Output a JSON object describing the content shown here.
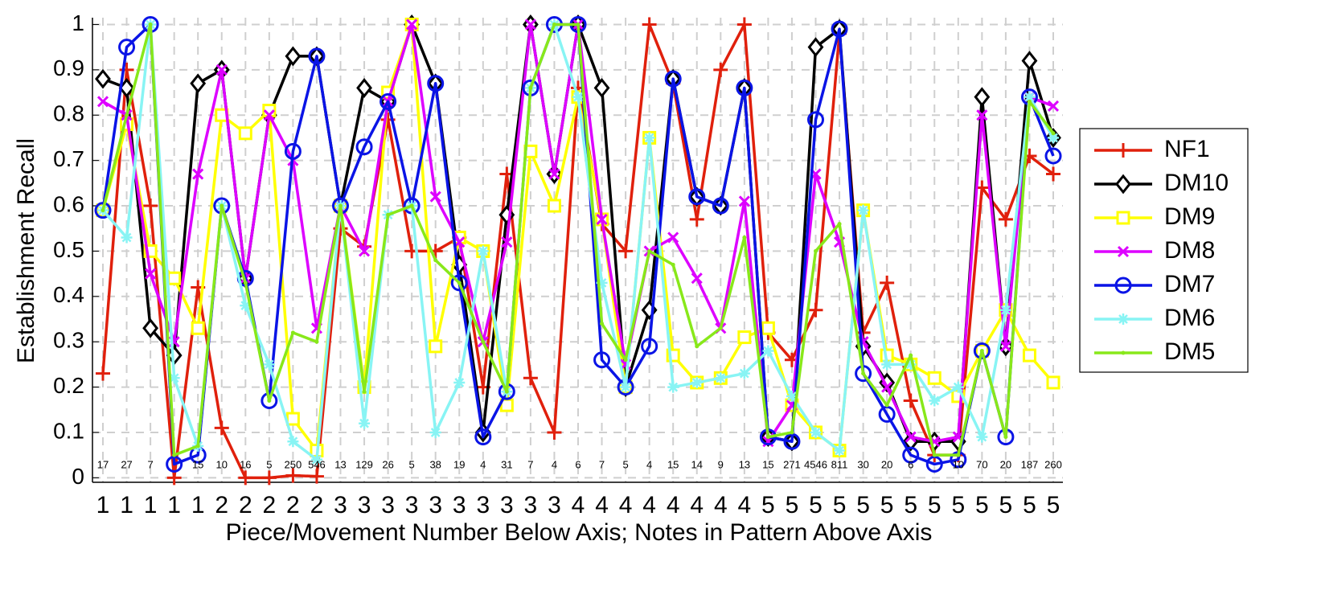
{
  "chart_data": {
    "type": "line",
    "ylabel": "Establishment Recall",
    "xlabel": "Piece/Movement Number Below Axis; Notes in Pattern Above Axis",
    "categories": [
      "1",
      "1",
      "1",
      "1",
      "1",
      "2",
      "2",
      "2",
      "2",
      "2",
      "3",
      "3",
      "3",
      "3",
      "3",
      "3",
      "3",
      "3",
      "3",
      "3",
      "4",
      "4",
      "4",
      "4",
      "4",
      "4",
      "4",
      "4",
      "5",
      "5",
      "5",
      "5",
      "5",
      "5",
      "5",
      "5",
      "5",
      "5",
      "5",
      "5",
      "5"
    ],
    "annotations": [
      17,
      27,
      7,
      null,
      15,
      10,
      16,
      5,
      250,
      546,
      13,
      129,
      26,
      5,
      38,
      19,
      4,
      31,
      7,
      4,
      6,
      7,
      5,
      4,
      15,
      14,
      9,
      13,
      15,
      271,
      4546,
      811,
      30,
      20,
      6,
      null,
      10,
      70,
      20,
      187,
      260
    ],
    "ylim": [
      -0.01,
      1.015
    ],
    "yticks": [
      0,
      0.1,
      0.2,
      0.3,
      0.4,
      0.5,
      0.6,
      0.7,
      0.8,
      0.9,
      1
    ],
    "grid": true,
    "legend": "right",
    "series": [
      {
        "name": "NF1",
        "color": "#e0200c",
        "marker": "plus",
        "values": [
          0.23,
          0.9,
          0.6,
          0.0,
          0.42,
          0.11,
          0.0,
          0.0,
          0.005,
          0.003,
          0.55,
          0.51,
          0.79,
          0.5,
          0.5,
          0.53,
          0.2,
          0.67,
          0.22,
          0.1,
          0.86,
          0.56,
          0.5,
          1.0,
          0.87,
          0.57,
          0.9,
          1.0,
          0.32,
          0.26,
          0.37,
          0.98,
          0.32,
          0.43,
          0.17,
          0.05,
          0.05,
          0.64,
          0.57,
          0.71,
          0.67
        ]
      },
      {
        "name": "DM10",
        "color": "#000000",
        "marker": "diamond",
        "values": [
          0.88,
          0.86,
          0.33,
          0.27,
          0.87,
          0.9,
          0.44,
          0.8,
          0.93,
          0.93,
          0.6,
          0.86,
          0.83,
          1.0,
          0.87,
          0.47,
          0.1,
          0.58,
          1.0,
          0.67,
          1.0,
          0.86,
          0.2,
          0.37,
          0.88,
          0.62,
          0.6,
          0.86,
          0.09,
          0.08,
          0.95,
          0.99,
          0.29,
          0.21,
          0.08,
          0.08,
          0.08,
          0.84,
          0.29,
          0.92,
          0.75
        ]
      },
      {
        "name": "DM9",
        "color": "#ffff00",
        "marker": "square",
        "values": [
          0.59,
          0.78,
          0.5,
          0.44,
          0.33,
          0.8,
          0.76,
          0.81,
          0.13,
          0.06,
          0.6,
          0.2,
          0.85,
          1.0,
          0.29,
          0.53,
          0.5,
          0.16,
          0.72,
          0.6,
          0.84,
          0.57,
          0.2,
          0.75,
          0.27,
          0.21,
          0.22,
          0.31,
          0.33,
          0.16,
          0.1,
          0.06,
          0.59,
          0.27,
          0.25,
          0.22,
          0.18,
          0.28,
          0.37,
          0.27,
          0.21
        ]
      },
      {
        "name": "DM8",
        "color": "#dd00ff",
        "marker": "x",
        "values": [
          0.83,
          0.8,
          0.45,
          0.3,
          0.67,
          0.9,
          0.44,
          0.8,
          0.7,
          0.33,
          0.6,
          0.5,
          0.83,
          1.0,
          0.62,
          0.52,
          0.3,
          0.52,
          1.0,
          0.67,
          1.0,
          0.57,
          0.25,
          0.5,
          0.53,
          0.44,
          0.33,
          0.61,
          0.08,
          0.16,
          0.67,
          0.52,
          0.3,
          0.2,
          0.09,
          0.08,
          0.09,
          0.8,
          0.29,
          0.84,
          0.82
        ]
      },
      {
        "name": "DM7",
        "color": "#0a14e6",
        "marker": "circle",
        "values": [
          0.59,
          0.95,
          1.0,
          0.03,
          0.05,
          0.6,
          0.44,
          0.17,
          0.72,
          0.93,
          0.6,
          0.73,
          0.83,
          0.6,
          0.87,
          0.43,
          0.09,
          0.19,
          0.86,
          1.0,
          1.0,
          0.26,
          0.2,
          0.29,
          0.88,
          0.62,
          0.6,
          0.86,
          0.09,
          0.08,
          0.79,
          0.99,
          0.23,
          0.14,
          0.05,
          0.03,
          0.04,
          0.28,
          0.09,
          0.84,
          0.71
        ]
      },
      {
        "name": "DM6",
        "color": "#88f4f4",
        "marker": "star",
        "values": [
          0.59,
          0.53,
          1.0,
          0.22,
          0.07,
          0.6,
          0.38,
          0.25,
          0.08,
          0.04,
          0.6,
          0.12,
          0.58,
          0.6,
          0.1,
          0.21,
          0.5,
          0.19,
          0.86,
          1.0,
          0.84,
          0.43,
          0.2,
          0.75,
          0.2,
          0.21,
          0.22,
          0.23,
          0.28,
          0.18,
          0.1,
          0.06,
          0.59,
          0.25,
          0.25,
          0.17,
          0.2,
          0.09,
          0.37,
          0.84,
          0.75
        ]
      },
      {
        "name": "DM5",
        "color": "#88e81a",
        "marker": "point",
        "values": [
          0.59,
          0.8,
          1.0,
          0.05,
          0.07,
          0.6,
          0.43,
          0.17,
          0.32,
          0.3,
          0.6,
          0.19,
          0.58,
          0.6,
          0.48,
          0.43,
          0.3,
          0.19,
          0.86,
          1.0,
          1.0,
          0.34,
          0.26,
          0.5,
          0.47,
          0.29,
          0.33,
          0.53,
          0.09,
          0.1,
          0.5,
          0.56,
          0.23,
          0.16,
          0.27,
          0.05,
          0.05,
          0.28,
          0.09,
          0.83,
          0.76
        ]
      }
    ]
  }
}
